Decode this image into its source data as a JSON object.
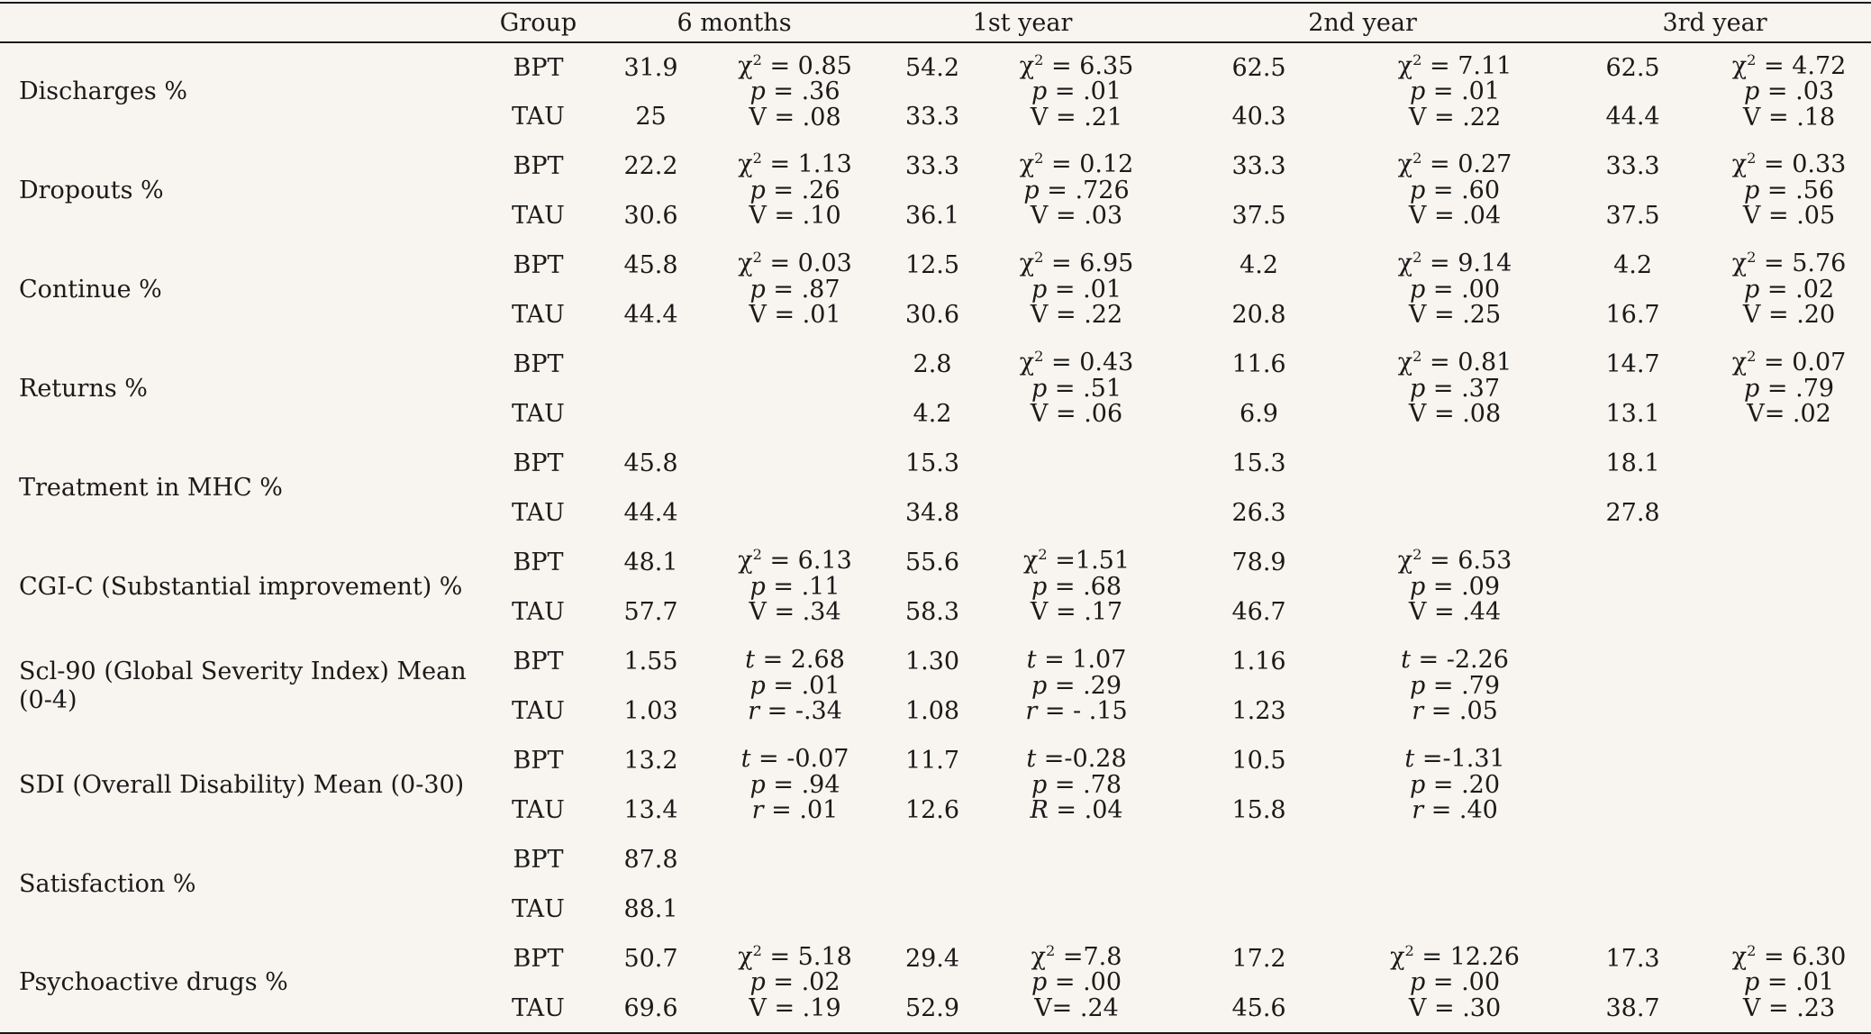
{
  "headers": [
    "",
    "Group",
    "6 months",
    "1st year",
    "2nd year",
    "3rd year"
  ],
  "rows": [
    {
      "label": "Discharges %",
      "groups": [
        "BPT",
        "TAU"
      ],
      "m6": [
        "31.9",
        "25"
      ],
      "s6": [
        "χ2 = 0.85",
        "p = .36",
        "V = .08"
      ],
      "y1": [
        "54.2",
        "33.3"
      ],
      "sy1": [
        "χ2 = 6.35",
        "p = .01",
        "V = .21"
      ],
      "y2": [
        "62.5",
        "40.3"
      ],
      "sy2": [
        "χ2 = 7.11",
        "p = .01",
        "V = .22"
      ],
      "y3": [
        "62.5",
        "44.4"
      ],
      "sy3": [
        "χ2 = 4.72",
        "p = .03",
        "V = .18"
      ]
    },
    {
      "label": "Dropouts %",
      "groups": [
        "BPT",
        "TAU"
      ],
      "m6": [
        "22.2",
        "30.6"
      ],
      "s6": [
        "χ2 = 1.13",
        "p = .26",
        "V = .10"
      ],
      "y1": [
        "33.3",
        "36.1"
      ],
      "sy1": [
        "χ2 = 0.12",
        "p = .726",
        "V = .03"
      ],
      "y2": [
        "33.3",
        "37.5"
      ],
      "sy2": [
        "χ2 = 0.27",
        "p = .60",
        "V = .04"
      ],
      "y3": [
        "33.3",
        "37.5"
      ],
      "sy3": [
        "χ2 = 0.33",
        "p = .56",
        "V = .05"
      ]
    },
    {
      "label": "Continue %",
      "groups": [
        "BPT",
        "TAU"
      ],
      "m6": [
        "45.8",
        "44.4"
      ],
      "s6": [
        "χ2 = 0.03",
        "p = .87",
        "V = .01"
      ],
      "y1": [
        "12.5",
        "30.6"
      ],
      "sy1": [
        "χ2 = 6.95",
        "p = .01",
        "V = .22"
      ],
      "y2": [
        "4.2",
        "20.8"
      ],
      "sy2": [
        "χ2 = 9.14",
        "p = .00",
        "V = .25"
      ],
      "y3": [
        "4.2",
        "16.7"
      ],
      "sy3": [
        "χ2 = 5.76",
        "p = .02",
        "V = .20"
      ]
    },
    {
      "label": "Returns %",
      "groups": [
        "BPT",
        "TAU"
      ],
      "m6": [
        "",
        ""
      ],
      "s6": [
        "",
        "",
        ""
      ],
      "y1": [
        "2.8",
        "4.2"
      ],
      "sy1": [
        "χ2 = 0.43",
        "p = .51",
        "V = .06"
      ],
      "y2": [
        "11.6",
        "6.9"
      ],
      "sy2": [
        "χ2 = 0.81",
        "p = .37",
        "V = .08"
      ],
      "y3": [
        "14.7",
        "13.1"
      ],
      "sy3": [
        "χ2 = 0.07",
        "p = .79",
        "V= .02"
      ]
    },
    {
      "label": "Treatment in MHC %",
      "groups": [
        "BPT",
        "TAU"
      ],
      "m6": [
        "45.8",
        "44.4"
      ],
      "s6": [
        "",
        "",
        ""
      ],
      "y1": [
        "15.3",
        "34.8"
      ],
      "sy1": [
        "",
        "",
        ""
      ],
      "y2": [
        "15.3",
        "26.3"
      ],
      "sy2": [
        "",
        "",
        ""
      ],
      "y3": [
        "18.1",
        "27.8"
      ],
      "sy3": [
        "",
        "",
        ""
      ]
    },
    {
      "label": "CGI-C (Substantial improvement) %",
      "groups": [
        "BPT",
        "TAU"
      ],
      "m6": [
        "48.1",
        "57.7"
      ],
      "s6": [
        "χ2 = 6.13",
        "p = .11",
        "V = .34"
      ],
      "y1": [
        "55.6",
        "58.3"
      ],
      "sy1": [
        "χ2 =1.51",
        "p = .68",
        "V = .17"
      ],
      "y2": [
        "78.9",
        "46.7"
      ],
      "sy2": [
        "χ2 = 6.53",
        "p = .09",
        "V = .44"
      ],
      "y3": [
        "",
        ""
      ],
      "sy3": [
        "",
        "",
        ""
      ]
    },
    {
      "label": "Scl-90 (Global Severity Index) Mean (0-4)",
      "groups": [
        "BPT",
        "TAU"
      ],
      "m6": [
        "1.55",
        "1.03"
      ],
      "s6": [
        "t = 2.68",
        "p = .01",
        "r = -.34"
      ],
      "y1": [
        "1.30",
        "1.08"
      ],
      "sy1": [
        "t = 1.07",
        "p = .29",
        "r = - .15"
      ],
      "y2": [
        "1.16",
        "1.23"
      ],
      "sy2": [
        "t = -2.26",
        "p = .79",
        "r = .05"
      ],
      "y3": [
        "",
        ""
      ],
      "sy3": [
        "",
        "",
        ""
      ]
    },
    {
      "label": "SDI (Overall Disability) Mean (0-30)",
      "groups": [
        "BPT",
        "TAU"
      ],
      "m6": [
        "13.2",
        "13.4"
      ],
      "s6": [
        "t = -0.07",
        "p = .94",
        "r = .01"
      ],
      "y1": [
        "11.7",
        "12.6"
      ],
      "sy1": [
        "t =-0.28",
        "p = .78",
        "R = .04"
      ],
      "y2": [
        "10.5",
        "15.8"
      ],
      "sy2": [
        "t =-1.31",
        "p = .20",
        "r = .40"
      ],
      "y3": [
        "",
        ""
      ],
      "sy3": [
        "",
        "",
        ""
      ]
    },
    {
      "label": "Satisfaction %",
      "groups": [
        "BPT",
        "TAU"
      ],
      "m6": [
        "87.8",
        "88.1"
      ],
      "s6": [
        "",
        "",
        ""
      ],
      "y1": [
        "",
        ""
      ],
      "sy1": [
        "",
        "",
        ""
      ],
      "y2": [
        "",
        ""
      ],
      "sy2": [
        "",
        "",
        ""
      ],
      "y3": [
        "",
        ""
      ],
      "sy3": [
        "",
        "",
        ""
      ]
    },
    {
      "label": "Psychoactive drugs %",
      "groups": [
        "BPT",
        "TAU"
      ],
      "m6": [
        "50.7",
        "69.6"
      ],
      "s6": [
        "χ2 = 5.18",
        "p = .02",
        "V = .19"
      ],
      "y1": [
        "29.4",
        "52.9"
      ],
      "sy1": [
        "χ2 =7.8",
        "p = .00",
        "V= .24"
      ],
      "y2": [
        "17.2",
        "45.6"
      ],
      "sy2": [
        "χ2 = 12.26",
        "p = .00",
        "V = .30"
      ],
      "y3": [
        "17.3",
        "38.7"
      ],
      "sy3": [
        "χ2 = 6.30",
        "p = .01",
        "V = .23"
      ]
    }
  ]
}
